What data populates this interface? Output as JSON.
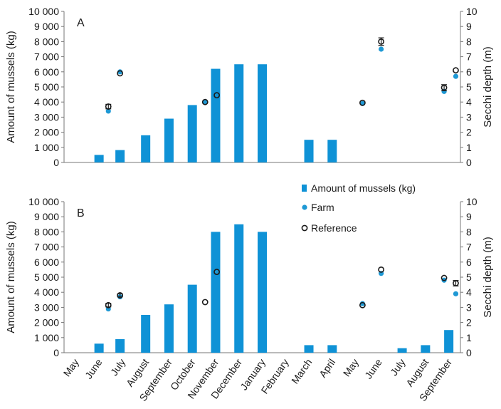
{
  "chart_data": [
    {
      "panel_label": "A",
      "type": "bar",
      "categories": [
        "May",
        "June",
        "July",
        "August",
        "September",
        "October",
        "November",
        "December",
        "January",
        "February",
        "March",
        "April",
        "May",
        "June",
        "July",
        "August",
        "September"
      ],
      "ylabel": "Amount of mussels (kg)",
      "y2label": "Secchi depth (m)",
      "ylim": [
        0,
        10000
      ],
      "y2lim": [
        0,
        10
      ],
      "yticks": [
        "0",
        "1 000",
        "2 000",
        "3 000",
        "4 000",
        "5 000",
        "6 000",
        "7 000",
        "8 000",
        "9 000",
        "10 000"
      ],
      "y2ticks": [
        "0",
        "1",
        "2",
        "3",
        "4",
        "5",
        "6",
        "7",
        "8",
        "9",
        "10"
      ],
      "bars": [
        {
          "x": 1,
          "value": 500
        },
        {
          "x": 1.9,
          "value": 820
        },
        {
          "x": 3,
          "value": 1800
        },
        {
          "x": 4,
          "value": 2900
        },
        {
          "x": 5,
          "value": 3800
        },
        {
          "x": 6,
          "value": 6200
        },
        {
          "x": 7,
          "value": 6500
        },
        {
          "x": 8,
          "value": 6500
        },
        {
          "x": 10,
          "value": 1500
        },
        {
          "x": 11,
          "value": 1500
        }
      ],
      "series": [
        {
          "name": "Farm",
          "axis": "right",
          "points": [
            {
              "x": 1.4,
              "y": 3.4
            },
            {
              "x": 1.9,
              "y": 6.0
            },
            {
              "x": 5.55,
              "y": 4.0
            },
            {
              "x": 12.3,
              "y": 3.9
            },
            {
              "x": 13.1,
              "y": 7.5
            },
            {
              "x": 15.8,
              "y": 4.7
            },
            {
              "x": 16.3,
              "y": 5.7
            }
          ]
        },
        {
          "name": "Reference",
          "axis": "right",
          "points": [
            {
              "x": 1.4,
              "y": 3.7,
              "err": 0.15
            },
            {
              "x": 1.9,
              "y": 5.9
            },
            {
              "x": 5.55,
              "y": 4.0
            },
            {
              "x": 6.05,
              "y": 4.45
            },
            {
              "x": 12.3,
              "y": 3.95
            },
            {
              "x": 13.1,
              "y": 8.0,
              "err": 0.25
            },
            {
              "x": 15.8,
              "y": 4.95,
              "err": 0.2
            },
            {
              "x": 16.3,
              "y": 6.1
            }
          ]
        }
      ]
    },
    {
      "panel_label": "B",
      "type": "bar",
      "categories": [
        "May",
        "June",
        "July",
        "August",
        "September",
        "October",
        "November",
        "December",
        "January",
        "February",
        "March",
        "April",
        "May",
        "June",
        "July",
        "August",
        "September"
      ],
      "ylabel": "Amount of mussels (kg)",
      "y2label": "Secchi depth (m)",
      "ylim": [
        0,
        10000
      ],
      "y2lim": [
        0,
        10
      ],
      "yticks": [
        "0",
        "1 000",
        "2 000",
        "3 000",
        "4 000",
        "5 000",
        "6 000",
        "7 000",
        "8 000",
        "9 000",
        "10 000"
      ],
      "y2ticks": [
        "0",
        "1",
        "2",
        "3",
        "4",
        "5",
        "6",
        "7",
        "8",
        "9",
        "10"
      ],
      "bars": [
        {
          "x": 1,
          "value": 600
        },
        {
          "x": 1.9,
          "value": 900
        },
        {
          "x": 3,
          "value": 2500
        },
        {
          "x": 4,
          "value": 3200
        },
        {
          "x": 5,
          "value": 4500
        },
        {
          "x": 6,
          "value": 8000
        },
        {
          "x": 7,
          "value": 8500
        },
        {
          "x": 8,
          "value": 8000
        },
        {
          "x": 10,
          "value": 500
        },
        {
          "x": 11,
          "value": 500
        },
        {
          "x": 14,
          "value": 300
        },
        {
          "x": 15,
          "value": 500
        },
        {
          "x": 16,
          "value": 1500
        }
      ],
      "series": [
        {
          "name": "Farm",
          "axis": "right",
          "points": [
            {
              "x": 1.4,
              "y": 2.9
            },
            {
              "x": 1.9,
              "y": 3.7
            },
            {
              "x": 6.05,
              "y": 5.3
            },
            {
              "x": 12.3,
              "y": 3.25
            },
            {
              "x": 13.1,
              "y": 5.25
            },
            {
              "x": 15.8,
              "y": 4.8
            },
            {
              "x": 16.3,
              "y": 3.9
            }
          ]
        },
        {
          "name": "Reference",
          "axis": "right",
          "points": [
            {
              "x": 1.4,
              "y": 3.15,
              "err": 0.12
            },
            {
              "x": 1.9,
              "y": 3.8,
              "err": 0.1
            },
            {
              "x": 5.55,
              "y": 3.35
            },
            {
              "x": 6.05,
              "y": 5.35
            },
            {
              "x": 12.3,
              "y": 3.15
            },
            {
              "x": 13.1,
              "y": 5.5
            },
            {
              "x": 15.8,
              "y": 4.95
            },
            {
              "x": 16.3,
              "y": 4.6,
              "err": 0.18
            }
          ]
        }
      ]
    }
  ],
  "legend": {
    "placement": "between panels, right",
    "items": [
      {
        "label": "Amount of mussels (kg)",
        "marker": "bar"
      },
      {
        "label": "Farm",
        "marker": "dot"
      },
      {
        "label": "Reference",
        "marker": "ring"
      }
    ]
  },
  "colors": {
    "bar": "#0f92d6",
    "farm": "#1e98d4",
    "reference_stroke": "#1a1a1a",
    "axis": "#777777",
    "text": "#1a1a1a"
  }
}
